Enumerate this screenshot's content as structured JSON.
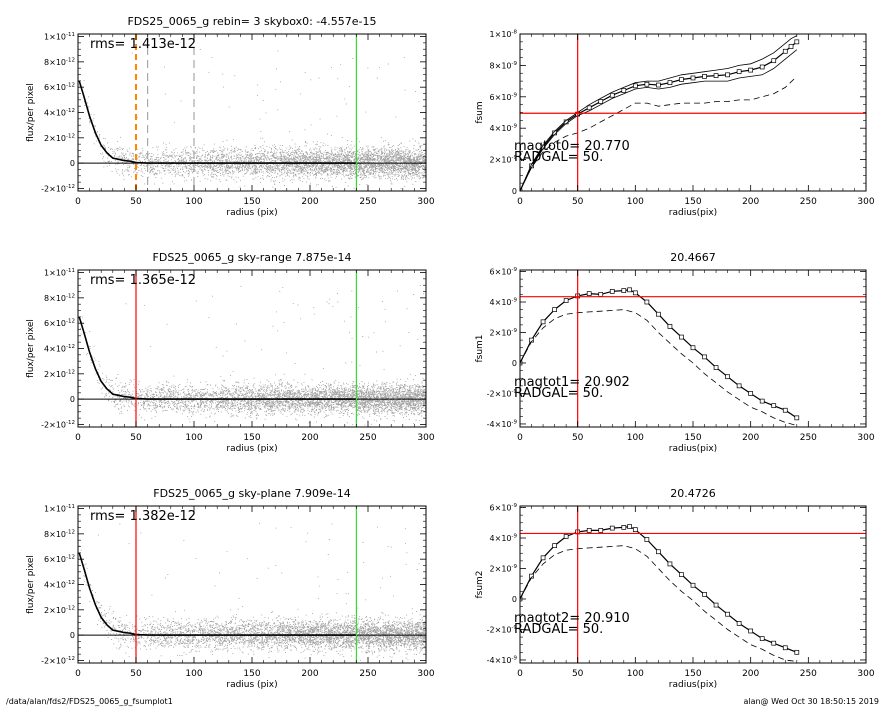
{
  "footer": {
    "left": "/data/alan/fds2/FDS25_0065_g_fsumplot1",
    "right": "alan@  Wed Oct 30 18:50:15 2019"
  },
  "colors": {
    "scatter": "#a0a0a0",
    "profile": "#000000",
    "outer_radius": "#33dd33",
    "red_marker": "#ff0000",
    "orange_marker": "#ff8800",
    "gray_dashed": "#a8a8a8"
  },
  "chart_data": [
    {
      "type": "scatter",
      "title": "FDS25_0065_g rebin= 3    skybox0: -4.557e-15",
      "xlabel": "radius (pix)",
      "ylabel": "flux/per pixel",
      "xlim": [
        0,
        300
      ],
      "ylim": [
        -2.2e-12,
        1.02e-11
      ],
      "xticks": [
        0,
        50,
        100,
        150,
        200,
        250,
        300
      ],
      "xtick_labels": [
        "0",
        "50",
        "100",
        "150",
        "200",
        "250",
        "300"
      ],
      "yticks": [
        -2e-12,
        0,
        2e-12,
        4e-12,
        6e-12,
        8e-12,
        1e-11
      ],
      "ytick_labels": [
        [
          "-2×10",
          "-12"
        ],
        [
          "0",
          ""
        ],
        [
          "2×10",
          "-12"
        ],
        [
          "4×10",
          "-12"
        ],
        [
          "6×10",
          "-12"
        ],
        [
          "8×10",
          "-12"
        ],
        [
          "1×10",
          "-11"
        ]
      ],
      "annotation": "rms= 1.413e-12",
      "rms": 1.413e-12,
      "zero_line": 0,
      "profile": {
        "x": [
          1,
          5,
          10,
          15,
          20,
          25,
          30,
          35,
          40,
          45,
          50,
          60,
          80,
          100,
          150,
          200,
          240
        ],
        "y": [
          6.5e-12,
          5.3e-12,
          3.7e-12,
          2.4e-12,
          1.4e-12,
          8e-13,
          4e-13,
          3e-13,
          2e-13,
          1.5e-13,
          5e-14,
          0,
          0,
          0,
          0,
          0,
          0
        ]
      },
      "vertical_lines": [
        {
          "x": 50,
          "style": "dashed-thick",
          "color": "#ff8800"
        },
        {
          "x": 60,
          "style": "dashed",
          "color": "#a8a8a8"
        },
        {
          "x": 100,
          "style": "dashed",
          "color": "#a8a8a8"
        },
        {
          "x": 240,
          "style": "solid",
          "color": "#33dd33"
        }
      ]
    },
    {
      "type": "line",
      "title": "",
      "xlabel": "radius(pix)",
      "ylabel": "fsum",
      "xlim": [
        0,
        300
      ],
      "ylim": [
        0,
        1e-08
      ],
      "xticks": [
        0,
        50,
        100,
        150,
        200,
        250,
        300
      ],
      "xtick_labels": [
        "0",
        "50",
        "100",
        "150",
        "200",
        "250",
        "300"
      ],
      "yticks": [
        0,
        2e-09,
        4e-09,
        6e-09,
        8e-09,
        1e-08
      ],
      "ytick_labels": [
        [
          "0",
          ""
        ],
        [
          "2×10",
          "-9"
        ],
        [
          "4×10",
          "-9"
        ],
        [
          "6×10",
          "-9"
        ],
        [
          "8×10",
          "-9"
        ],
        [
          "1×10",
          "-8"
        ]
      ],
      "annotations": [
        "magtot0=  20.770",
        "RADGAL=     50."
      ],
      "hline": 4.95e-09,
      "vline": 50,
      "series": [
        {
          "style": "boxes",
          "x": [
            0,
            10,
            20,
            30,
            40,
            50,
            60,
            70,
            80,
            90,
            100,
            110,
            120,
            130,
            140,
            150,
            160,
            170,
            180,
            190,
            200,
            210,
            220,
            230,
            235,
            240
          ],
          "y": [
            0,
            1.6e-09,
            2.8e-09,
            3.7e-09,
            4.4e-09,
            4.9e-09,
            5.3e-09,
            5.7e-09,
            6.1e-09,
            6.4e-09,
            6.7e-09,
            6.8e-09,
            6.75e-09,
            6.9e-09,
            7.1e-09,
            7.2e-09,
            7.3e-09,
            7.35e-09,
            7.4e-09,
            7.6e-09,
            7.7e-09,
            7.9e-09,
            8.3e-09,
            8.9e-09,
            9.2e-09,
            9.5e-09
          ]
        },
        {
          "style": "thin",
          "x": [
            0,
            10,
            20,
            30,
            40,
            50,
            60,
            70,
            80,
            90,
            100,
            110,
            120,
            130,
            140,
            150,
            160,
            170,
            180,
            190,
            200,
            210,
            220,
            230,
            235,
            240
          ],
          "y": [
            0,
            1.7e-09,
            2.9e-09,
            3.8e-09,
            4.5e-09,
            5e-09,
            5.5e-09,
            5.9e-09,
            6.3e-09,
            6.6e-09,
            6.9e-09,
            7e-09,
            7e-09,
            7.2e-09,
            7.4e-09,
            7.5e-09,
            7.6e-09,
            7.7e-09,
            7.8e-09,
            8e-09,
            8.1e-09,
            8.4e-09,
            8.8e-09,
            9.4e-09,
            9.7e-09,
            9.9e-09
          ]
        },
        {
          "style": "thin",
          "x": [
            0,
            10,
            20,
            30,
            40,
            50,
            60,
            70,
            80,
            90,
            100,
            110,
            120,
            130,
            140,
            150,
            160,
            170,
            180,
            190,
            200,
            210,
            220,
            230,
            235,
            240
          ],
          "y": [
            0,
            1.5e-09,
            2.7e-09,
            3.6e-09,
            4.3e-09,
            4.8e-09,
            5.1e-09,
            5.5e-09,
            5.9e-09,
            6.2e-09,
            6.5e-09,
            6.6e-09,
            6.5e-09,
            6.6e-09,
            6.8e-09,
            6.9e-09,
            7e-09,
            7e-09,
            7e-09,
            7.2e-09,
            7.3e-09,
            7.4e-09,
            7.8e-09,
            8.4e-09,
            8.7e-09,
            9e-09
          ]
        },
        {
          "style": "dashed",
          "x": [
            0,
            10,
            20,
            30,
            40,
            50,
            60,
            70,
            80,
            90,
            100,
            110,
            120,
            130,
            140,
            150,
            160,
            170,
            180,
            190,
            200,
            210,
            220,
            230,
            240
          ],
          "y": [
            0,
            1.5e-09,
            2.5e-09,
            3.1e-09,
            3.5e-09,
            3.7e-09,
            4e-09,
            4.4e-09,
            4.8e-09,
            5.2e-09,
            5.6e-09,
            5.6e-09,
            5.4e-09,
            5.5e-09,
            5.6e-09,
            5.6e-09,
            5.6e-09,
            5.7e-09,
            5.7e-09,
            5.8e-09,
            5.8e-09,
            6e-09,
            6.2e-09,
            6.6e-09,
            7.3e-09
          ]
        }
      ]
    },
    {
      "type": "scatter",
      "title": "FDS25_0065_g sky-range  7.875e-14",
      "xlabel": "radius (pix)",
      "ylabel": "flux/per pixel",
      "xlim": [
        0,
        300
      ],
      "ylim": [
        -2.2e-12,
        1.02e-11
      ],
      "xticks": [
        0,
        50,
        100,
        150,
        200,
        250,
        300
      ],
      "xtick_labels": [
        "0",
        "50",
        "100",
        "150",
        "200",
        "250",
        "300"
      ],
      "yticks": [
        -2e-12,
        0,
        2e-12,
        4e-12,
        6e-12,
        8e-12,
        1e-11
      ],
      "ytick_labels": [
        [
          "-2×10",
          "-12"
        ],
        [
          "0",
          ""
        ],
        [
          "2×10",
          "-12"
        ],
        [
          "4×10",
          "-12"
        ],
        [
          "6×10",
          "-12"
        ],
        [
          "8×10",
          "-12"
        ],
        [
          "1×10",
          "-11"
        ]
      ],
      "annotation": "rms= 1.365e-12",
      "rms": 1.365e-12,
      "zero_line": 0,
      "profile": {
        "x": [
          1,
          5,
          10,
          15,
          20,
          25,
          30,
          35,
          40,
          45,
          50,
          60,
          80,
          100,
          150,
          200,
          240
        ],
        "y": [
          6.5e-12,
          5.3e-12,
          3.7e-12,
          2.4e-12,
          1.4e-12,
          8e-13,
          4e-13,
          3e-13,
          2e-13,
          1.5e-13,
          5e-14,
          0,
          0,
          0,
          0,
          0,
          0
        ]
      },
      "vertical_lines": [
        {
          "x": 50,
          "style": "solid",
          "color": "#ff0000"
        },
        {
          "x": 240,
          "style": "solid",
          "color": "#33dd33"
        }
      ]
    },
    {
      "type": "line",
      "title": "20.4667",
      "xlabel": "radius(pix)",
      "ylabel": "fsum1",
      "xlim": [
        0,
        300
      ],
      "ylim": [
        -4.2e-09,
        6.1e-09
      ],
      "xticks": [
        0,
        50,
        100,
        150,
        200,
        250,
        300
      ],
      "xtick_labels": [
        "0",
        "50",
        "100",
        "150",
        "200",
        "250",
        "300"
      ],
      "yticks": [
        -4e-09,
        -2e-09,
        0,
        2e-09,
        4e-09,
        6e-09
      ],
      "ytick_labels": [
        [
          "-4×10",
          "-9"
        ],
        [
          "-2×10",
          "-9"
        ],
        [
          "0",
          ""
        ],
        [
          "2×10",
          "-9"
        ],
        [
          "4×10",
          "-9"
        ],
        [
          "6×10",
          "-9"
        ]
      ],
      "annotations": [
        "magtot1=  20.902",
        "RADGAL=     50."
      ],
      "hline": 4.35e-09,
      "vline": 50,
      "series": [
        {
          "style": "boxes",
          "x": [
            0,
            10,
            20,
            30,
            40,
            50,
            60,
            70,
            80,
            90,
            95,
            100,
            110,
            120,
            130,
            140,
            150,
            160,
            170,
            180,
            190,
            200,
            210,
            220,
            230,
            240
          ],
          "y": [
            0,
            1.5e-09,
            2.7e-09,
            3.5e-09,
            4.1e-09,
            4.4e-09,
            4.55e-09,
            4.5e-09,
            4.7e-09,
            4.75e-09,
            4.8e-09,
            4.6e-09,
            4e-09,
            3.2e-09,
            2.4e-09,
            1.7e-09,
            1e-09,
            4e-10,
            -3e-10,
            -9e-10,
            -1.5e-09,
            -2e-09,
            -2.5e-09,
            -2.8e-09,
            -3.1e-09,
            -3.6e-09
          ]
        },
        {
          "style": "dashed",
          "x": [
            0,
            10,
            20,
            30,
            40,
            50,
            60,
            70,
            80,
            90,
            100,
            110,
            120,
            130,
            140,
            150,
            160,
            170,
            180,
            190,
            200,
            210,
            220,
            230,
            240
          ],
          "y": [
            0,
            1.4e-09,
            2.3e-09,
            2.9e-09,
            3.2e-09,
            3.3e-09,
            3.35e-09,
            3.4e-09,
            3.45e-09,
            3.5e-09,
            3.3e-09,
            2.8e-09,
            2e-09,
            1.3e-09,
            6e-10,
            0,
            -7e-10,
            -1.3e-09,
            -1.9e-09,
            -2.4e-09,
            -2.9e-09,
            -3.2e-09,
            -3.6e-09,
            -3.9e-09,
            -4.1e-09
          ]
        }
      ]
    },
    {
      "type": "scatter",
      "title": "FDS25_0065_g sky-plane  7.909e-14",
      "xlabel": "radius (pix)",
      "ylabel": "flux/per pixel",
      "xlim": [
        0,
        300
      ],
      "ylim": [
        -2.2e-12,
        1.02e-11
      ],
      "xticks": [
        0,
        50,
        100,
        150,
        200,
        250,
        300
      ],
      "xtick_labels": [
        "0",
        "50",
        "100",
        "150",
        "200",
        "250",
        "300"
      ],
      "yticks": [
        -2e-12,
        0,
        2e-12,
        4e-12,
        6e-12,
        8e-12,
        1e-11
      ],
      "ytick_labels": [
        [
          "-2×10",
          "-12"
        ],
        [
          "0",
          ""
        ],
        [
          "2×10",
          "-12"
        ],
        [
          "4×10",
          "-12"
        ],
        [
          "6×10",
          "-12"
        ],
        [
          "8×10",
          "-12"
        ],
        [
          "1×10",
          "-11"
        ]
      ],
      "annotation": "rms= 1.382e-12",
      "rms": 1.382e-12,
      "zero_line": 0,
      "profile": {
        "x": [
          1,
          5,
          10,
          15,
          20,
          25,
          30,
          35,
          40,
          45,
          50,
          60,
          80,
          100,
          150,
          200,
          240
        ],
        "y": [
          6.5e-12,
          5.3e-12,
          3.7e-12,
          2.4e-12,
          1.4e-12,
          8e-13,
          4e-13,
          3e-13,
          2e-13,
          1.5e-13,
          5e-14,
          0,
          0,
          0,
          0,
          0,
          0
        ]
      },
      "vertical_lines": [
        {
          "x": 50,
          "style": "solid",
          "color": "#ff0000"
        },
        {
          "x": 240,
          "style": "solid",
          "color": "#33dd33"
        }
      ]
    },
    {
      "type": "line",
      "title": "20.4726",
      "xlabel": "radius(pix)",
      "ylabel": "fsum2",
      "xlim": [
        0,
        300
      ],
      "ylim": [
        -4.2e-09,
        6.1e-09
      ],
      "xticks": [
        0,
        50,
        100,
        150,
        200,
        250,
        300
      ],
      "xtick_labels": [
        "0",
        "50",
        "100",
        "150",
        "200",
        "250",
        "300"
      ],
      "yticks": [
        -4e-09,
        -2e-09,
        0,
        2e-09,
        4e-09,
        6e-09
      ],
      "ytick_labels": [
        [
          "-4×10",
          "-9"
        ],
        [
          "-2×10",
          "-9"
        ],
        [
          "0",
          ""
        ],
        [
          "2×10",
          "-9"
        ],
        [
          "4×10",
          "-9"
        ],
        [
          "6×10",
          "-9"
        ]
      ],
      "annotations": [
        "magtot2=  20.910",
        "RADGAL=     50."
      ],
      "hline": 4.3e-09,
      "vline": 50,
      "series": [
        {
          "style": "boxes",
          "x": [
            0,
            10,
            20,
            30,
            40,
            50,
            60,
            70,
            80,
            90,
            95,
            100,
            110,
            120,
            130,
            140,
            150,
            160,
            170,
            180,
            190,
            200,
            210,
            220,
            230,
            240
          ],
          "y": [
            0,
            1.5e-09,
            2.7e-09,
            3.5e-09,
            4.1e-09,
            4.4e-09,
            4.5e-09,
            4.5e-09,
            4.65e-09,
            4.7e-09,
            4.75e-09,
            4.55e-09,
            3.9e-09,
            3.1e-09,
            2.3e-09,
            1.6e-09,
            9e-10,
            3e-10,
            -4e-10,
            -1e-09,
            -1.6e-09,
            -2.1e-09,
            -2.6e-09,
            -2.9e-09,
            -3.2e-09,
            -3.5e-09
          ]
        },
        {
          "style": "dashed",
          "x": [
            0,
            10,
            20,
            30,
            40,
            50,
            60,
            70,
            80,
            90,
            100,
            110,
            120,
            130,
            140,
            150,
            160,
            170,
            180,
            190,
            200,
            210,
            220,
            230,
            240
          ],
          "y": [
            0,
            1.4e-09,
            2.3e-09,
            2.9e-09,
            3.2e-09,
            3.3e-09,
            3.35e-09,
            3.4e-09,
            3.45e-09,
            3.5e-09,
            3.3e-09,
            2.8e-09,
            2e-09,
            1.2e-09,
            5e-10,
            -1e-10,
            -8e-10,
            -1.4e-09,
            -2e-09,
            -2.5e-09,
            -3e-09,
            -3.3e-09,
            -3.7e-09,
            -4e-09,
            -4.1e-09
          ]
        }
      ]
    }
  ]
}
